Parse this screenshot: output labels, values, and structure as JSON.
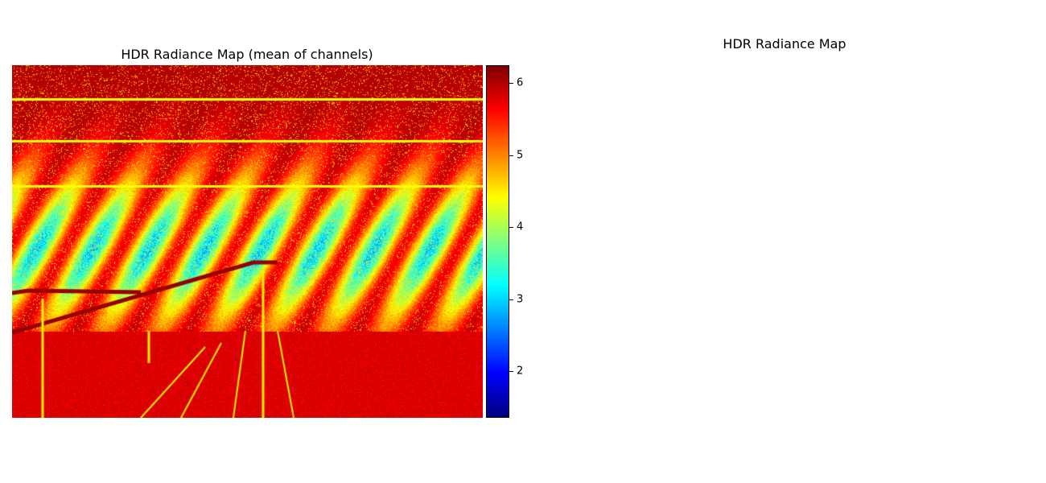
{
  "chart_data": [
    {
      "type": "heatmap",
      "title": "HDR Radiance Map (mean of channels)",
      "colormap": "jet",
      "axes_visible": false,
      "colorbar": {
        "range": [
          1.35,
          6.25
        ],
        "ticks": [
          2,
          3,
          4,
          5,
          6
        ],
        "tick_labels": [
          "2",
          "3",
          "4",
          "5",
          "6"
        ],
        "colors": [
          "#00007f",
          "#0000ff",
          "#007fff",
          "#00ffff",
          "#7fff7f",
          "#ffff00",
          "#ff7f00",
          "#ff0000",
          "#7f0000"
        ]
      }
    },
    {
      "type": "heatmap",
      "title": "HDR Radiance Map",
      "axes_visible": false
    }
  ]
}
